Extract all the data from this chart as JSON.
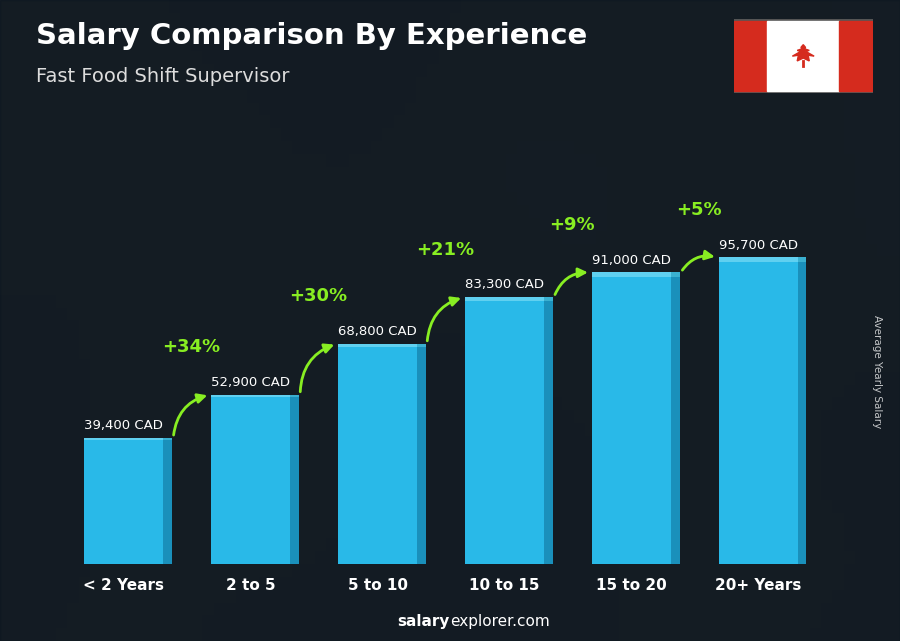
{
  "title": "Salary Comparison By Experience",
  "subtitle": "Fast Food Shift Supervisor",
  "categories": [
    "< 2 Years",
    "2 to 5",
    "5 to 10",
    "10 to 15",
    "15 to 20",
    "20+ Years"
  ],
  "values": [
    39400,
    52900,
    68800,
    83300,
    91000,
    95700
  ],
  "labels": [
    "39,400 CAD",
    "52,900 CAD",
    "68,800 CAD",
    "83,300 CAD",
    "91,000 CAD",
    "95,700 CAD"
  ],
  "pct_changes": [
    "+34%",
    "+30%",
    "+21%",
    "+9%",
    "+5%"
  ],
  "bar_color_face": "#29b9e8",
  "bar_color_dark": "#0f6e96",
  "bar_color_right": "#1a90bb",
  "background_color": "#1a2535",
  "title_color": "#ffffff",
  "subtitle_color": "#dddddd",
  "label_color": "#ffffff",
  "pct_color": "#88ee22",
  "ylabel": "Average Yearly Salary",
  "footer_bold": "salary",
  "footer_rest": "explorer.com",
  "ylim": [
    0,
    120000
  ],
  "bar_width": 0.62
}
